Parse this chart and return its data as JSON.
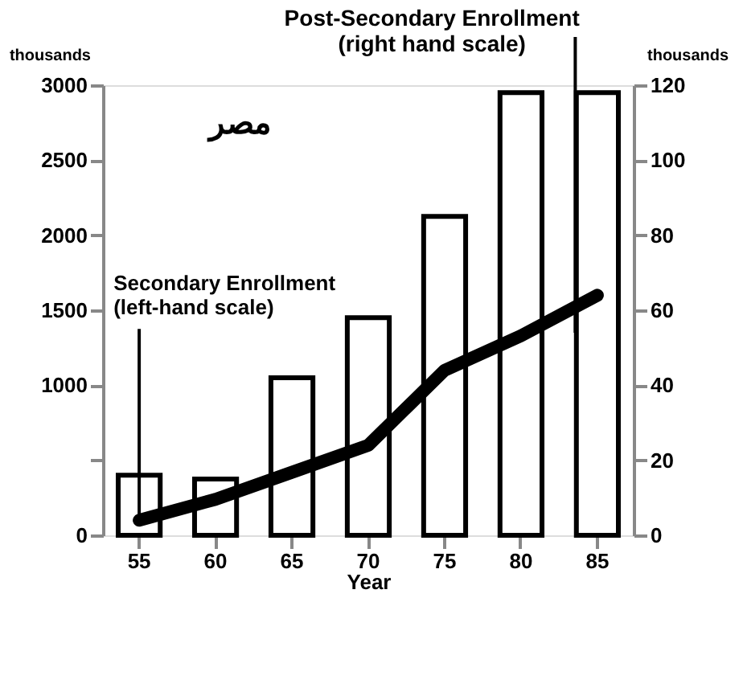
{
  "chart_data": {
    "type": "bar",
    "categories": [
      "55",
      "60",
      "65",
      "70",
      "75",
      "80",
      "85"
    ],
    "xlabel": "Year",
    "ylabel": "thousands",
    "y2label": "thousands",
    "series": [
      {
        "axis": "y2",
        "color": "#ffffff",
        "values": [
          16,
          15,
          42,
          58,
          85,
          118,
          118
        ]
      },
      {
        "type": "line",
        "color": "#000000",
        "values": [
          100,
          240,
          420,
          600,
          1100,
          1330,
          1600
        ]
      }
    ],
    "ylim": [
      0,
      3000
    ],
    "yticks": [
      0,
      {
        "value": 500,
        "label": null
      },
      1000,
      1500,
      2000,
      2500,
      3000
    ],
    "y2lim": [
      0,
      120
    ],
    "y2ticks": [
      0,
      20,
      40,
      60,
      80,
      100,
      120
    ],
    "annotations": [
      "Post-Secondary Enrollment\n(right hand scale)",
      {
        "text": "Secondary Enrollment\n(left-hand scale)",
        "x": "55",
        "y": 100
      },
      "مصر"
    ],
    "grid": false,
    "line_style": "solid"
  }
}
